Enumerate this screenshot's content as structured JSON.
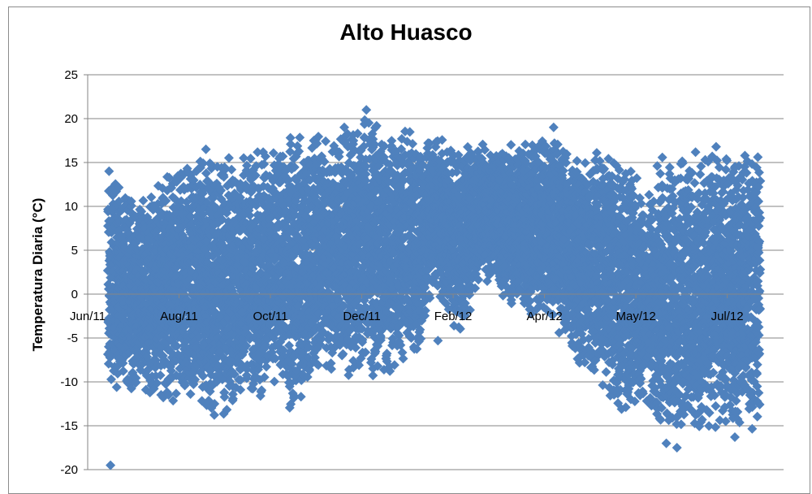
{
  "chart_data": {
    "type": "scatter",
    "title": "Alto Huasco",
    "xlabel": "",
    "ylabel": "Temperatura Diaria (°C)",
    "ylim": [
      -20,
      25
    ],
    "yticks": [
      25,
      20,
      15,
      10,
      5,
      0,
      -5,
      -10,
      -15,
      -20
    ],
    "xlim": [
      "2011-06-01",
      "2012-08-31"
    ],
    "xticks": [
      {
        "date": "2011-06-01",
        "label": "Jun/11"
      },
      {
        "date": "2011-07-31",
        "label": "Aug/11"
      },
      {
        "date": "2011-09-29",
        "label": "Oct/11"
      },
      {
        "date": "2011-11-28",
        "label": "Dec/11"
      },
      {
        "date": "2012-01-27",
        "label": "Feb/12"
      },
      {
        "date": "2012-03-27",
        "label": "Apr/12"
      },
      {
        "date": "2012-05-26",
        "label": "May/12"
      },
      {
        "date": "2012-07-25",
        "label": "Jul/12"
      }
    ],
    "grid": "horizontal",
    "marker": "diamond",
    "color": "#4f81bd",
    "series": [
      {
        "name": "",
        "envelope": [
          {
            "date": "2011-06-15",
            "min": -11.5,
            "max": 14.0
          },
          {
            "date": "2011-07-01",
            "min": -12.0,
            "max": 11.5
          },
          {
            "date": "2011-07-15",
            "min": -12.0,
            "max": 13.0
          },
          {
            "date": "2011-08-01",
            "min": -12.5,
            "max": 15.0
          },
          {
            "date": "2011-08-15",
            "min": -14.0,
            "max": 17.5
          },
          {
            "date": "2011-09-01",
            "min": -14.5,
            "max": 16.0
          },
          {
            "date": "2011-09-15",
            "min": -13.0,
            "max": 17.5
          },
          {
            "date": "2011-10-01",
            "min": -11.0,
            "max": 17.0
          },
          {
            "date": "2011-10-15",
            "min": -14.0,
            "max": 19.0
          },
          {
            "date": "2011-11-01",
            "min": -9.5,
            "max": 19.5
          },
          {
            "date": "2011-11-15",
            "min": -10.0,
            "max": 19.0
          },
          {
            "date": "2011-12-01",
            "min": -10.0,
            "max": 21.0
          },
          {
            "date": "2011-12-15",
            "min": -9.5,
            "max": 19.5
          },
          {
            "date": "2012-01-01",
            "min": -8.5,
            "max": 19.0
          },
          {
            "date": "2012-01-15",
            "min": 0.0,
            "max": 18.0
          },
          {
            "date": "2012-02-01",
            "min": -5.0,
            "max": 17.5
          },
          {
            "date": "2012-02-15",
            "min": 2.0,
            "max": 17.5
          },
          {
            "date": "2012-03-01",
            "min": -1.0,
            "max": 17.0
          },
          {
            "date": "2012-03-15",
            "min": -3.0,
            "max": 18.0
          },
          {
            "date": "2012-04-01",
            "min": -4.0,
            "max": 19.0
          },
          {
            "date": "2012-04-15",
            "min": -8.0,
            "max": 17.0
          },
          {
            "date": "2012-05-01",
            "min": -10.0,
            "max": 16.5
          },
          {
            "date": "2012-05-15",
            "min": -14.0,
            "max": 17.0
          },
          {
            "date": "2012-06-01",
            "min": -14.0,
            "max": 12.5
          },
          {
            "date": "2012-06-15",
            "min": -17.0,
            "max": 16.5
          },
          {
            "date": "2012-07-01",
            "min": -16.5,
            "max": 16.5
          },
          {
            "date": "2012-07-15",
            "min": -16.5,
            "max": 17.0
          },
          {
            "date": "2012-08-01",
            "min": -16.0,
            "max": 17.0
          },
          {
            "date": "2012-08-15",
            "min": -15.5,
            "max": 17.0
          }
        ],
        "points": [
          {
            "date": "2011-06-16",
            "y": -19.5
          },
          {
            "date": "2011-06-15",
            "y": 14.0
          },
          {
            "date": "2011-12-01",
            "y": 21.0
          },
          {
            "date": "2012-06-22",
            "y": -17.5
          },
          {
            "date": "2012-06-15",
            "y": -17.0
          },
          {
            "date": "2012-07-30",
            "y": -16.3
          },
          {
            "date": "2012-01-17",
            "y": -5.3
          },
          {
            "date": "2012-04-02",
            "y": 19.0
          }
        ]
      }
    ]
  }
}
